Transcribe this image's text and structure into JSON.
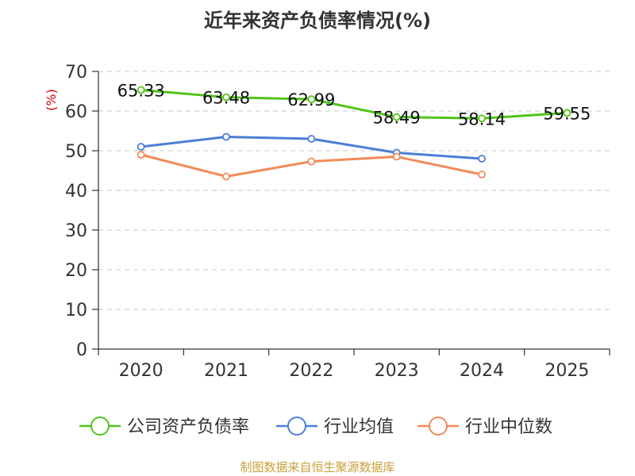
{
  "title": "近年来资产负债率情况(%)",
  "source": "制图数据来自恒生聚源数据库",
  "chart_data": {
    "type": "line",
    "title": "近年来资产负债率情况(%)",
    "x": [
      "2020",
      "2021",
      "2022",
      "2023",
      "2024",
      "2025"
    ],
    "ylabel": "(%)",
    "ylim": [
      0,
      70
    ],
    "yticks": [
      0,
      10,
      20,
      30,
      40,
      50,
      60,
      70
    ],
    "grid": true,
    "legend_position": "bottom",
    "series": [
      {
        "name": "公司资产负债率",
        "color": "#52c41a",
        "values": [
          65.33,
          63.48,
          62.99,
          58.49,
          58.14,
          59.55
        ],
        "labels": [
          "65.33",
          "63.48",
          "62.99",
          "58.49",
          "58.14",
          "59.55"
        ]
      },
      {
        "name": "行业均值",
        "color": "#4a7fd6",
        "values": [
          51.0,
          53.5,
          53.0,
          49.5,
          48.0,
          null
        ]
      },
      {
        "name": "行业中位数",
        "color": "#f28a5a",
        "values": [
          49.0,
          43.5,
          47.3,
          48.5,
          44.0,
          null
        ]
      }
    ]
  }
}
